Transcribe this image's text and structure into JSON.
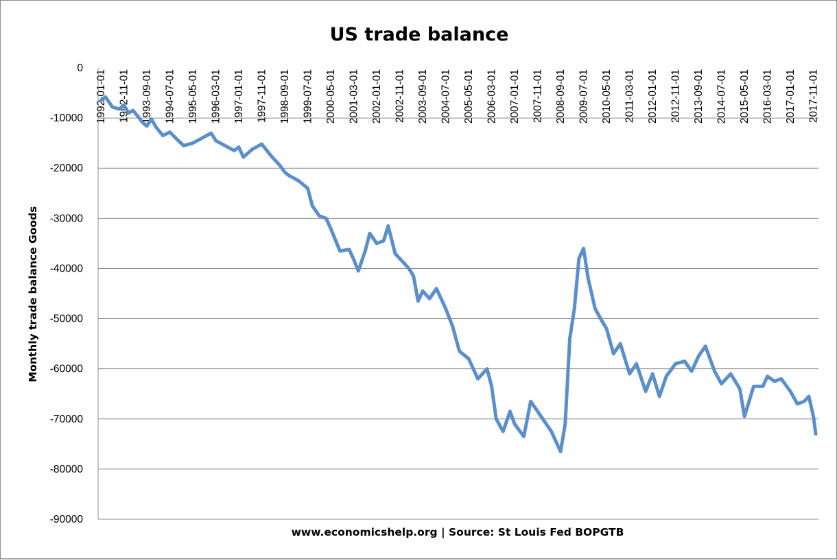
{
  "chart_data": {
    "type": "line",
    "title": "US trade balance",
    "ylabel": "Monthly trade balance Goods",
    "xlabel": "www.economicshelp.org | Source: St Louis Fed BOPGTB",
    "ylim": [
      -90000,
      0
    ],
    "yticks": [
      0,
      -10000,
      -20000,
      -30000,
      -40000,
      -50000,
      -60000,
      -70000,
      -80000,
      -90000
    ],
    "xlim": [
      "1992-01-01",
      "2017-12-01"
    ],
    "grid": true,
    "legend": "none",
    "x_tick_labels": [
      "1992-01-01",
      "1992-11-01",
      "1993-09-01",
      "1994-07-01",
      "1995-05-01",
      "1996-03-01",
      "1997-01-01",
      "1997-11-01",
      "1998-09-01",
      "1999-07-01",
      "2000-05-01",
      "2001-03-01",
      "2002-01-01",
      "2002-11-01",
      "2003-09-01",
      "2004-07-01",
      "2005-05-01",
      "2006-03-01",
      "2007-01-01",
      "2007-11-01",
      "2008-09-01",
      "2009-07-01",
      "2010-05-01",
      "2011-03-01",
      "2012-01-01",
      "2012-11-01",
      "2013-09-01",
      "2014-07-01",
      "2015-05-01",
      "2016-03-01",
      "2017-01-01",
      "2017-11-01"
    ],
    "series": [
      {
        "color": "#5b8fc9",
        "points": [
          [
            "1992-01-01",
            -6500
          ],
          [
            "1992-03-01",
            -5800
          ],
          [
            "1992-06-01",
            -7800
          ],
          [
            "1992-09-01",
            -8200
          ],
          [
            "1992-11-01",
            -7400
          ],
          [
            "1993-01-01",
            -9000
          ],
          [
            "1993-03-01",
            -8500
          ],
          [
            "1993-05-01",
            -9600
          ],
          [
            "1993-07-01",
            -10800
          ],
          [
            "1993-09-01",
            -11600
          ],
          [
            "1993-11-01",
            -10200
          ],
          [
            "1994-01-01",
            -11800
          ],
          [
            "1994-04-01",
            -13500
          ],
          [
            "1994-07-01",
            -12800
          ],
          [
            "1994-10-01",
            -14200
          ],
          [
            "1995-01-01",
            -15500
          ],
          [
            "1995-05-01",
            -15000
          ],
          [
            "1995-09-01",
            -14000
          ],
          [
            "1996-01-01",
            -13000
          ],
          [
            "1996-03-01",
            -14500
          ],
          [
            "1996-07-01",
            -15500
          ],
          [
            "1996-11-01",
            -16500
          ],
          [
            "1997-01-01",
            -15800
          ],
          [
            "1997-03-01",
            -17800
          ],
          [
            "1997-07-01",
            -16200
          ],
          [
            "1997-11-01",
            -15200
          ],
          [
            "1998-03-01",
            -17500
          ],
          [
            "1998-07-01",
            -19500
          ],
          [
            "1998-09-01",
            -20800
          ],
          [
            "1998-11-01",
            -21500
          ],
          [
            "1999-03-01",
            -22500
          ],
          [
            "1999-07-01",
            -24000
          ],
          [
            "1999-09-01",
            -27500
          ],
          [
            "1999-12-01",
            -29500
          ],
          [
            "2000-03-01",
            -30000
          ],
          [
            "2000-05-01",
            -32000
          ],
          [
            "2000-09-01",
            -36500
          ],
          [
            "2001-01-01",
            -36200
          ],
          [
            "2001-03-01",
            -38200
          ],
          [
            "2001-05-01",
            -40500
          ],
          [
            "2001-08-01",
            -36500
          ],
          [
            "2001-10-01",
            -33000
          ],
          [
            "2002-01-01",
            -35000
          ],
          [
            "2002-04-01",
            -34500
          ],
          [
            "2002-06-01",
            -31500
          ],
          [
            "2002-09-01",
            -37000
          ],
          [
            "2002-11-01",
            -38000
          ],
          [
            "2003-03-01",
            -40000
          ],
          [
            "2003-05-01",
            -41500
          ],
          [
            "2003-07-01",
            -46500
          ],
          [
            "2003-09-01",
            -44500
          ],
          [
            "2003-12-01",
            -46000
          ],
          [
            "2004-03-01",
            -44000
          ],
          [
            "2004-07-01",
            -48000
          ],
          [
            "2004-10-01",
            -51500
          ],
          [
            "2005-01-01",
            -56500
          ],
          [
            "2005-05-01",
            -58000
          ],
          [
            "2005-09-01",
            -62000
          ],
          [
            "2006-01-01",
            -60000
          ],
          [
            "2006-03-01",
            -63500
          ],
          [
            "2006-05-01",
            -70000
          ],
          [
            "2006-08-01",
            -72500
          ],
          [
            "2006-11-01",
            -68500
          ],
          [
            "2007-01-01",
            -71000
          ],
          [
            "2007-05-01",
            -73500
          ],
          [
            "2007-08-01",
            -66500
          ],
          [
            "2007-11-01",
            -68500
          ],
          [
            "2008-02-01",
            -70500
          ],
          [
            "2008-05-01",
            -72500
          ],
          [
            "2008-08-01",
            -75500
          ],
          [
            "2008-09-01",
            -76500
          ],
          [
            "2008-11-01",
            -71000
          ],
          [
            "2009-01-01",
            -54000
          ],
          [
            "2009-03-01",
            -48000
          ],
          [
            "2009-05-01",
            -38000
          ],
          [
            "2009-07-01",
            -36000
          ],
          [
            "2009-09-01",
            -42000
          ],
          [
            "2009-12-01",
            -48000
          ],
          [
            "2010-03-01",
            -50500
          ],
          [
            "2010-05-01",
            -52000
          ],
          [
            "2010-08-01",
            -57000
          ],
          [
            "2010-11-01",
            -55000
          ],
          [
            "2011-03-01",
            -61000
          ],
          [
            "2011-06-01",
            -59000
          ],
          [
            "2011-10-01",
            -64500
          ],
          [
            "2012-01-01",
            -61000
          ],
          [
            "2012-04-01",
            -65500
          ],
          [
            "2012-07-01",
            -61500
          ],
          [
            "2012-11-01",
            -59000
          ],
          [
            "2013-03-01",
            -58500
          ],
          [
            "2013-06-01",
            -60500
          ],
          [
            "2013-09-01",
            -57500
          ],
          [
            "2013-12-01",
            -55500
          ],
          [
            "2014-04-01",
            -60500
          ],
          [
            "2014-07-01",
            -63000
          ],
          [
            "2014-11-01",
            -61000
          ],
          [
            "2015-03-01",
            -64000
          ],
          [
            "2015-05-01",
            -69500
          ],
          [
            "2015-09-01",
            -63500
          ],
          [
            "2016-01-01",
            -63500
          ],
          [
            "2016-03-01",
            -61500
          ],
          [
            "2016-06-01",
            -62500
          ],
          [
            "2016-09-01",
            -62000
          ],
          [
            "2017-01-01",
            -64500
          ],
          [
            "2017-04-01",
            -67000
          ],
          [
            "2017-07-01",
            -66500
          ],
          [
            "2017-09-01",
            -65500
          ],
          [
            "2017-11-01",
            -69500
          ],
          [
            "2017-12-01",
            -73000
          ]
        ]
      }
    ]
  }
}
